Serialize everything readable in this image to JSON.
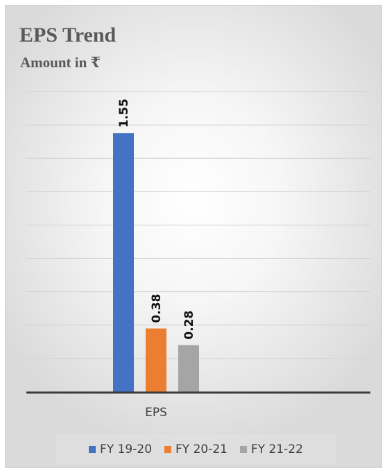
{
  "chart_data": {
    "type": "bar",
    "title": "EPS Trend",
    "subtitle": "Amount in ₹",
    "categories": [
      "EPS"
    ],
    "series": [
      {
        "name": "FY 19-20",
        "values": [
          1.55
        ],
        "color": "#4472C4"
      },
      {
        "name": "FY 20-21",
        "values": [
          0.38
        ],
        "color": "#ED7D31"
      },
      {
        "name": "FY 21-22",
        "values": [
          0.28
        ],
        "color": "#A5A5A5"
      }
    ],
    "data_labels": [
      "1.55",
      "0.38",
      "0.28"
    ],
    "ylim": [
      0,
      1.8
    ],
    "y_gridlines": 9,
    "grid": true,
    "legend_position": "bottom",
    "xlabel": "",
    "ylabel": ""
  }
}
